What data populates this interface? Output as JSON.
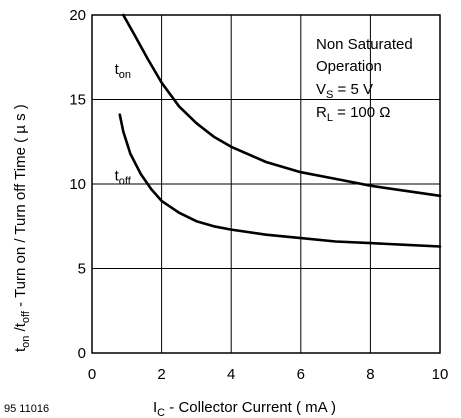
{
  "chart_data": {
    "type": "line",
    "figure_code": "95 11016",
    "xlabel": {
      "main": "I",
      "sub": "C",
      "rest": " - Collector Current ( mA )"
    },
    "ylabel": {
      "p1": "t",
      "p1_sub": "on",
      "p2": " /t",
      "p2_sub": "off",
      "rest": " - Turn on / Turn off Time ( µ s )"
    },
    "xlim": [
      0,
      10
    ],
    "ylim": [
      0,
      20
    ],
    "xticks": [
      0,
      2,
      4,
      6,
      8,
      10
    ],
    "yticks": [
      0,
      5,
      10,
      15,
      20
    ],
    "grid": true,
    "annotation": {
      "line1": "Non Saturated",
      "line2": "Operation",
      "line3_main": "V",
      "line3_sub": "S",
      "line3_rest": "  = 5 V",
      "line4_main": "R",
      "line4_sub": "L",
      "line4_rest": "  = 100 Ω"
    },
    "series": [
      {
        "name": "t_on",
        "label_main": "t",
        "label_sub": "on",
        "x": [
          0.9,
          1.2,
          1.6,
          2.0,
          2.5,
          3.0,
          3.5,
          4.0,
          5.0,
          6.0,
          7.0,
          8.0,
          9.0,
          10.0
        ],
        "y": [
          20.0,
          18.9,
          17.4,
          16.0,
          14.6,
          13.6,
          12.8,
          12.2,
          11.3,
          10.7,
          10.3,
          9.9,
          9.6,
          9.3
        ]
      },
      {
        "name": "t_off",
        "label_main": "t",
        "label_sub": "off",
        "x": [
          0.8,
          0.9,
          1.1,
          1.4,
          1.7,
          2.0,
          2.5,
          3.0,
          3.5,
          4.0,
          5.0,
          6.0,
          7.0,
          8.0,
          9.0,
          10.0
        ],
        "y": [
          14.1,
          13.1,
          11.8,
          10.6,
          9.7,
          9.0,
          8.3,
          7.8,
          7.5,
          7.3,
          7.0,
          6.8,
          6.6,
          6.5,
          6.4,
          6.3
        ]
      }
    ]
  }
}
